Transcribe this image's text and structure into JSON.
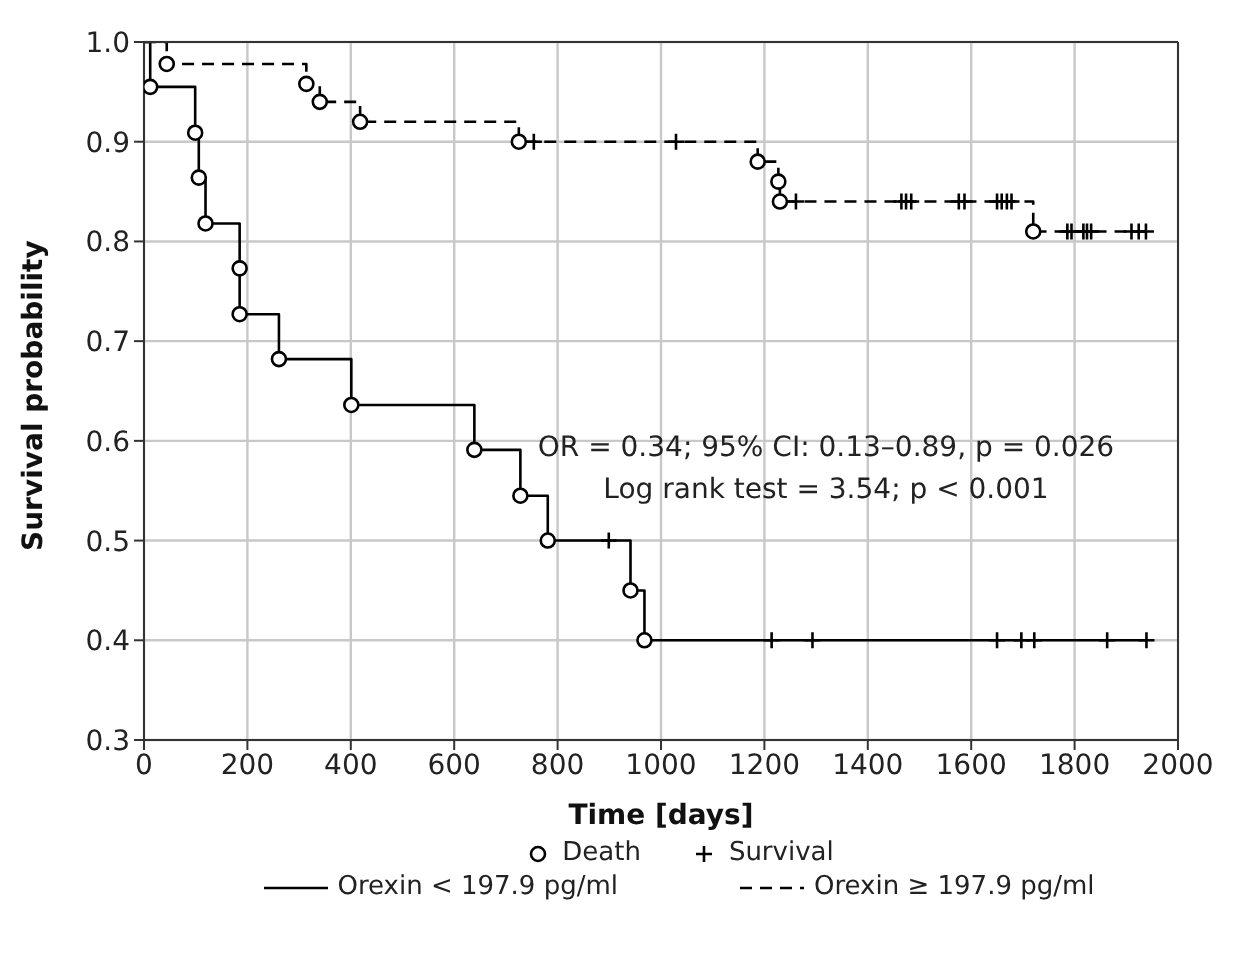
{
  "chart_data": {
    "type": "step",
    "xlabel": "Time [days]",
    "ylabel": "Survival probability",
    "xlim": [
      0,
      2000
    ],
    "xticks": [
      0,
      200,
      400,
      600,
      800,
      1000,
      1200,
      1400,
      1600,
      1800,
      2000
    ],
    "ylim": [
      0.3,
      1.0
    ],
    "yticks": [
      0.3,
      0.4,
      0.5,
      0.6,
      0.7,
      0.8,
      0.9,
      {
        "value": 1.0,
        "label": "1.0"
      }
    ],
    "grid": true,
    "legend": "bottom",
    "annotations": [
      "OR = 0.34; 95% CI: 0.13–0.89, p = 0.026",
      "Log rank test = 3.54; p < 0.001"
    ],
    "series": [
      {
        "name": "Death",
        "type": "scatter",
        "marker": "circle",
        "color": "#000000",
        "x": [
          12,
          99,
          106,
          119,
          185,
          185,
          261,
          401,
          639,
          728,
          781,
          941,
          968,
          44,
          314,
          340,
          418,
          725,
          1187,
          1227,
          1230,
          1720
        ],
        "values": [
          0.955,
          0.909,
          0.864,
          0.818,
          0.773,
          0.727,
          0.682,
          0.636,
          0.591,
          0.545,
          0.5,
          0.45,
          0.4,
          0.978,
          0.958,
          0.94,
          0.92,
          0.9,
          0.88,
          0.86,
          0.84,
          0.81
        ]
      },
      {
        "name": "Survival",
        "type": "scatter",
        "marker": "cross",
        "color": "#000000",
        "x": [
          899,
          1214,
          1293,
          1650,
          1697,
          1722,
          1863,
          1939,
          754,
          1029,
          1261,
          1465,
          1474,
          1484,
          1576,
          1587,
          1650,
          1659,
          1669,
          1678,
          1786,
          1794,
          1817,
          1824,
          1832,
          1910,
          1924,
          1938
        ],
        "values": [
          0.5,
          0.4,
          0.4,
          0.4,
          0.4,
          0.4,
          0.4,
          0.4,
          0.9,
          0.9,
          0.84,
          0.84,
          0.84,
          0.84,
          0.84,
          0.84,
          0.84,
          0.84,
          0.84,
          0.84,
          0.81,
          0.81,
          0.81,
          0.81,
          0.81,
          0.81,
          0.81,
          0.81
        ]
      },
      {
        "name": "Orexin < 197.9 pg/ml",
        "line_style": "solid",
        "marker": "none",
        "color": "#000000",
        "x": [
          0,
          12,
          99,
          106,
          119,
          185,
          185,
          261,
          401,
          639,
          728,
          781,
          941,
          968,
          1939
        ],
        "values": [
          1.0,
          0.955,
          0.909,
          0.864,
          0.818,
          0.773,
          0.727,
          0.682,
          0.636,
          0.591,
          0.545,
          0.5,
          0.45,
          0.4,
          0.4
        ]
      },
      {
        "name": "Orexin ≥ 197.9 pg/ml",
        "line_style": "dashed",
        "marker": "none",
        "color": "#000000",
        "x": [
          0,
          44,
          314,
          340,
          418,
          725,
          1187,
          1227,
          1230,
          1720,
          1938
        ],
        "values": [
          1.0,
          0.978,
          0.958,
          0.94,
          0.92,
          0.9,
          0.88,
          0.86,
          0.84,
          0.81,
          0.81
        ]
      }
    ]
  }
}
